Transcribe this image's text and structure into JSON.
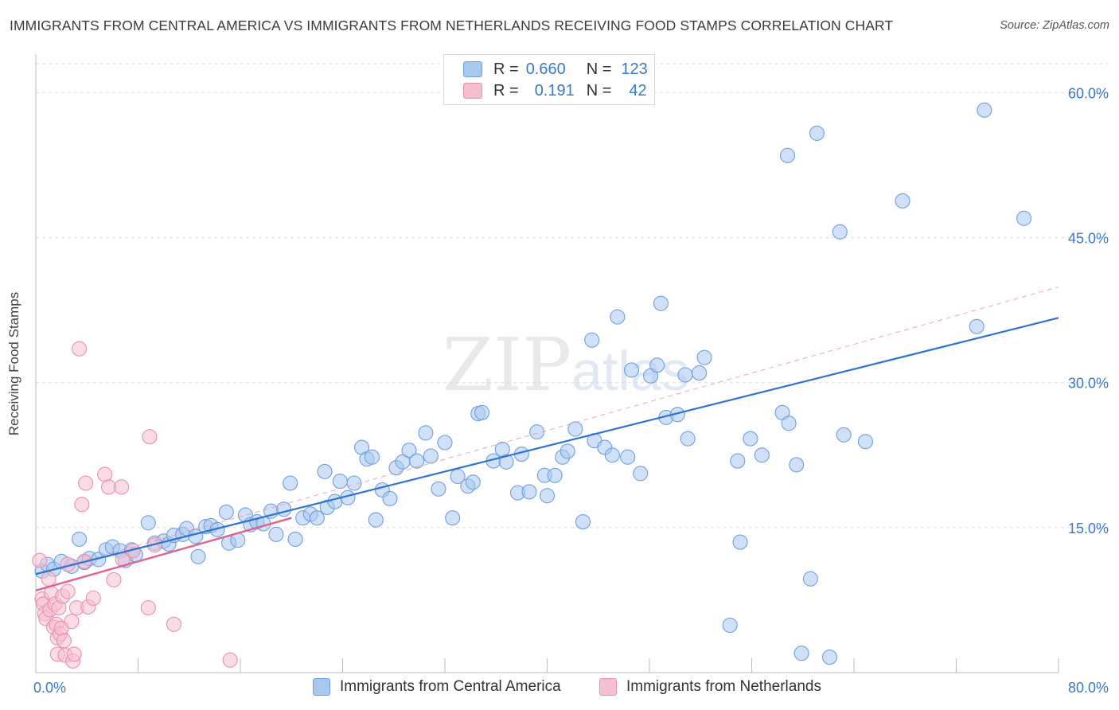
{
  "header": {
    "title": "IMMIGRANTS FROM CENTRAL AMERICA VS IMMIGRANTS FROM NETHERLANDS RECEIVING FOOD STAMPS CORRELATION CHART",
    "source": "Source: ZipAtlas.com"
  },
  "legend": {
    "rows": [
      {
        "r_label": "R =",
        "r_value": "0.660",
        "n_label": "N =",
        "n_value": "123"
      },
      {
        "r_label": "R =",
        "r_value": "0.191",
        "n_label": "N =",
        "n_value": "42"
      }
    ]
  },
  "watermark": {
    "zip": "ZIP",
    "atlas": "atlas"
  },
  "colors": {
    "blue_fill": "#a9c8f0",
    "blue_stroke": "#6d9fe0",
    "blue_line": "#2f74d0",
    "pink_fill": "#f6bfd0",
    "pink_stroke": "#e98fae",
    "pink_line": "#e0648c",
    "tick_text": "#3a78c9",
    "grid": "#dcdcdc"
  },
  "chart_data": {
    "type": "scatter",
    "title": "IMMIGRANTS FROM CENTRAL AMERICA VS IMMIGRANTS FROM NETHERLANDS RECEIVING FOOD STAMPS CORRELATION CHART",
    "xlabel": "",
    "ylabel": "Receiving Food Stamps",
    "xlim": [
      0,
      80
    ],
    "ylim": [
      0,
      63
    ],
    "x_tick_labels": [
      {
        "value": 0,
        "label": "0.0%"
      },
      {
        "value": 80,
        "label": "80.0%"
      }
    ],
    "y_tick_labels": [
      {
        "value": 15,
        "label": "15.0%"
      },
      {
        "value": 30,
        "label": "30.0%"
      },
      {
        "value": 45,
        "label": "45.0%"
      },
      {
        "value": 60,
        "label": "60.0%"
      }
    ],
    "x_minor_ticks": [
      0,
      8,
      16,
      24,
      32,
      40,
      48,
      56,
      64,
      72,
      80
    ],
    "grid": true,
    "series": [
      {
        "name": "Immigrants from Central America",
        "color": "blue",
        "r": "0.660",
        "n": "123",
        "trend": {
          "x0": 0,
          "y0": 10.2,
          "x1": 80,
          "y1": 36.7,
          "dashed_ext_y": 39.9
        },
        "points": [
          [
            0.5,
            10.5
          ],
          [
            0.9,
            11.2
          ],
          [
            1.4,
            10.7
          ],
          [
            2.0,
            11.5
          ],
          [
            2.8,
            11.0
          ],
          [
            3.4,
            13.8
          ],
          [
            3.8,
            11.4
          ],
          [
            4.2,
            11.8
          ],
          [
            4.9,
            11.7
          ],
          [
            5.5,
            12.7
          ],
          [
            6.0,
            13.0
          ],
          [
            6.6,
            12.6
          ],
          [
            7.0,
            11.6
          ],
          [
            7.5,
            12.7
          ],
          [
            7.8,
            12.2
          ],
          [
            8.8,
            15.5
          ],
          [
            9.3,
            13.4
          ],
          [
            10.0,
            13.6
          ],
          [
            10.4,
            13.3
          ],
          [
            10.8,
            14.2
          ],
          [
            11.5,
            14.3
          ],
          [
            11.8,
            14.9
          ],
          [
            12.5,
            14.1
          ],
          [
            12.7,
            12.0
          ],
          [
            13.3,
            15.1
          ],
          [
            13.7,
            15.2
          ],
          [
            14.2,
            14.8
          ],
          [
            14.9,
            16.6
          ],
          [
            15.1,
            13.4
          ],
          [
            15.8,
            13.7
          ],
          [
            16.4,
            16.3
          ],
          [
            16.8,
            15.3
          ],
          [
            17.3,
            15.6
          ],
          [
            17.8,
            15.4
          ],
          [
            18.4,
            16.7
          ],
          [
            18.8,
            14.3
          ],
          [
            19.4,
            16.9
          ],
          [
            19.9,
            19.6
          ],
          [
            20.3,
            13.8
          ],
          [
            20.9,
            16.0
          ],
          [
            21.5,
            16.4
          ],
          [
            22.0,
            16.0
          ],
          [
            22.6,
            20.8
          ],
          [
            22.8,
            17.1
          ],
          [
            23.4,
            17.7
          ],
          [
            23.8,
            19.8
          ],
          [
            24.4,
            18.1
          ],
          [
            24.9,
            19.6
          ],
          [
            25.5,
            23.3
          ],
          [
            25.9,
            22.1
          ],
          [
            26.3,
            22.3
          ],
          [
            26.6,
            15.8
          ],
          [
            27.1,
            18.9
          ],
          [
            27.7,
            18.0
          ],
          [
            28.2,
            21.2
          ],
          [
            28.7,
            21.8
          ],
          [
            29.2,
            23.0
          ],
          [
            29.8,
            21.9
          ],
          [
            30.5,
            24.8
          ],
          [
            30.9,
            22.4
          ],
          [
            31.5,
            19.0
          ],
          [
            32.0,
            23.8
          ],
          [
            32.6,
            16.0
          ],
          [
            33.0,
            20.3
          ],
          [
            33.8,
            19.3
          ],
          [
            34.2,
            19.7
          ],
          [
            34.6,
            26.8
          ],
          [
            34.9,
            26.9
          ],
          [
            35.8,
            21.9
          ],
          [
            36.5,
            23.1
          ],
          [
            36.8,
            21.8
          ],
          [
            37.7,
            18.6
          ],
          [
            38.0,
            22.6
          ],
          [
            38.6,
            18.7
          ],
          [
            39.2,
            24.9
          ],
          [
            39.8,
            20.4
          ],
          [
            40.0,
            18.3
          ],
          [
            40.6,
            20.4
          ],
          [
            41.2,
            22.3
          ],
          [
            41.6,
            22.9
          ],
          [
            42.2,
            25.2
          ],
          [
            42.8,
            15.6
          ],
          [
            43.5,
            34.4
          ],
          [
            43.7,
            24.0
          ],
          [
            44.5,
            23.3
          ],
          [
            45.1,
            22.5
          ],
          [
            45.5,
            36.8
          ],
          [
            46.3,
            22.3
          ],
          [
            46.6,
            31.3
          ],
          [
            47.3,
            20.6
          ],
          [
            48.1,
            30.7
          ],
          [
            48.6,
            31.8
          ],
          [
            48.9,
            38.2
          ],
          [
            49.3,
            26.4
          ],
          [
            50.2,
            26.7
          ],
          [
            50.8,
            30.8
          ],
          [
            51.0,
            24.2
          ],
          [
            51.9,
            31.0
          ],
          [
            52.3,
            32.6
          ],
          [
            54.3,
            4.9
          ],
          [
            54.9,
            21.9
          ],
          [
            55.1,
            13.5
          ],
          [
            55.9,
            24.2
          ],
          [
            56.8,
            22.5
          ],
          [
            58.4,
            26.9
          ],
          [
            58.9,
            25.8
          ],
          [
            58.8,
            53.5
          ],
          [
            59.5,
            21.5
          ],
          [
            59.9,
            2.0
          ],
          [
            60.6,
            9.7
          ],
          [
            61.1,
            55.8
          ],
          [
            62.1,
            1.6
          ],
          [
            62.9,
            45.6
          ],
          [
            63.2,
            24.6
          ],
          [
            64.9,
            23.9
          ],
          [
            67.8,
            48.8
          ],
          [
            73.6,
            35.8
          ],
          [
            74.2,
            58.2
          ],
          [
            77.3,
            47.0
          ]
        ]
      },
      {
        "name": "Immigrants from Netherlands",
        "color": "pink",
        "r": "0.191",
        "n": "42",
        "trend": {
          "x0": 0,
          "y0": 8.5,
          "x1": 20,
          "y1": 16.0
        },
        "points": [
          [
            0.3,
            11.6
          ],
          [
            0.5,
            7.6
          ],
          [
            0.6,
            7.1
          ],
          [
            0.7,
            6.1
          ],
          [
            0.8,
            5.6
          ],
          [
            1.0,
            9.7
          ],
          [
            1.1,
            6.5
          ],
          [
            1.2,
            8.2
          ],
          [
            1.4,
            4.7
          ],
          [
            1.5,
            7.1
          ],
          [
            1.6,
            5.0
          ],
          [
            1.7,
            1.9
          ],
          [
            1.7,
            3.6
          ],
          [
            1.8,
            6.7
          ],
          [
            1.9,
            4.0
          ],
          [
            2.0,
            4.6
          ],
          [
            2.1,
            7.9
          ],
          [
            2.2,
            3.3
          ],
          [
            2.3,
            1.8
          ],
          [
            2.5,
            8.4
          ],
          [
            2.5,
            11.2
          ],
          [
            2.8,
            5.3
          ],
          [
            2.9,
            1.2
          ],
          [
            3.0,
            1.9
          ],
          [
            3.2,
            6.7
          ],
          [
            3.4,
            33.5
          ],
          [
            3.6,
            17.4
          ],
          [
            3.8,
            11.5
          ],
          [
            3.9,
            19.6
          ],
          [
            4.1,
            6.8
          ],
          [
            4.5,
            7.7
          ],
          [
            5.4,
            20.5
          ],
          [
            5.7,
            19.2
          ],
          [
            6.1,
            9.6
          ],
          [
            6.7,
            19.2
          ],
          [
            6.8,
            11.7
          ],
          [
            7.6,
            12.6
          ],
          [
            8.8,
            6.7
          ],
          [
            8.9,
            24.4
          ],
          [
            9.3,
            13.2
          ],
          [
            10.8,
            5.0
          ],
          [
            15.2,
            1.3
          ]
        ]
      }
    ]
  },
  "bottom_legend": {
    "series1": "Immigrants from Central America",
    "series2": "Immigrants from Netherlands"
  }
}
